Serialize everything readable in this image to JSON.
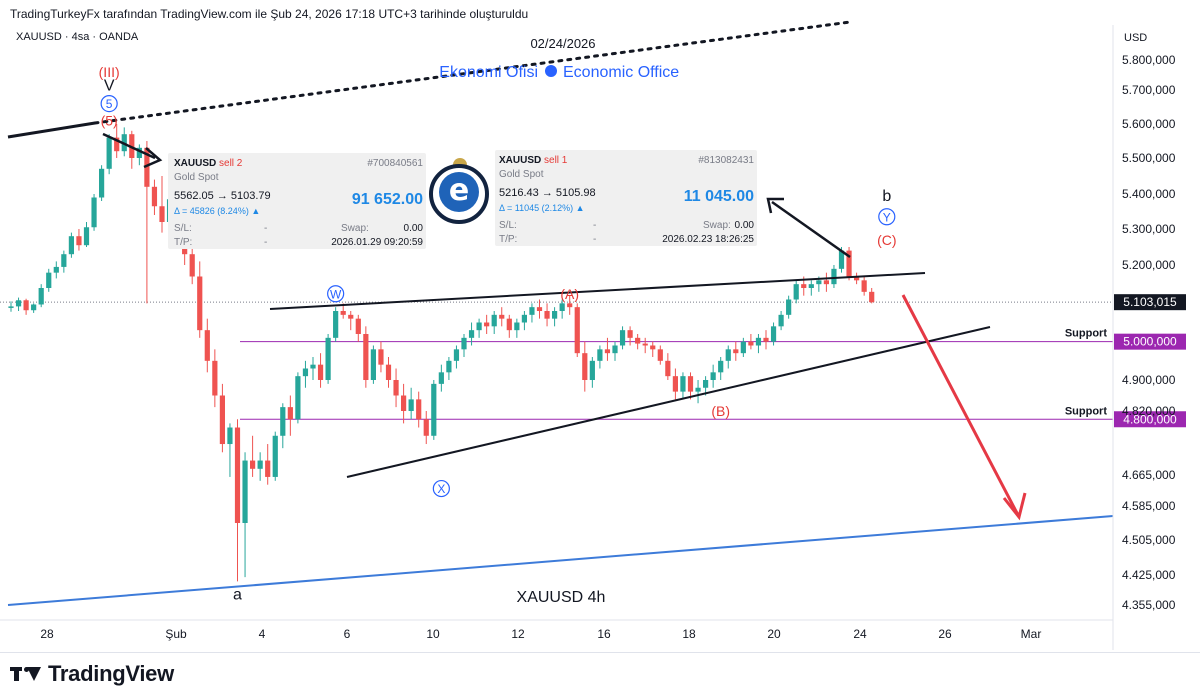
{
  "header": {
    "attribution": "TradingTurkeyFx tarafından TradingView.com ile Şub 24, 2026 17:18 UTC+3 tarihinde oluşturuldu",
    "symbol": "XAUUSD · 4sa · OANDA",
    "currency": "USD",
    "date_label": "02/24/2026",
    "watermark_left": "Ekonomi Ofisi",
    "watermark_right": "Economic Office"
  },
  "footer": {
    "brand": "TradingView"
  },
  "trade_cards": [
    {
      "symbol": "XAUUSD",
      "side": "sell 2",
      "id": "#700840561",
      "instrument": "Gold Spot",
      "prices": "5562.05 → 5103.79",
      "delta": "Δ = 45826 (8.24%) ▲",
      "profit": "91 652.00",
      "sl_label": "S/L:",
      "sl_value": "-",
      "swap_label": "Swap:",
      "swap_value": "0.00",
      "tp_label": "T/P:",
      "tp_value": "-",
      "timestamp": "2026.01.29 09:20:59"
    },
    {
      "symbol": "XAUUSD",
      "side": "sell 1",
      "id": "#813082431",
      "instrument": "Gold Spot",
      "prices": "5216.43 → 5105.98",
      "delta": "Δ = 11045 (2.12%) ▲",
      "profit": "11 045.00",
      "sl_label": "S/L:",
      "sl_value": "-",
      "swap_label": "Swap:",
      "swap_value": "0.00",
      "tp_label": "T/P:",
      "tp_value": "-",
      "timestamp": "2026.02.23 18:26:25"
    }
  ],
  "colors": {
    "up": "#26a69a",
    "down": "#ef5350",
    "wave_label": "#e53935",
    "wave_circle": "#2962ff",
    "support": "#9c27b0",
    "trend_blue": "#3d7bd9",
    "projection": "#e53945"
  },
  "chart_data": {
    "type": "candlestick",
    "title": "XAUUSD   4h",
    "y_axis": {
      "ticks": [
        "5.800,000",
        "5.700,000",
        "5.600,000",
        "5.500,000",
        "5.400,000",
        "5.300,000",
        "5.200,000",
        "4.900,000",
        "4.820,000",
        "4.665,000",
        "4.585,000",
        "4.505,000",
        "4.425,000",
        "4.355,000"
      ],
      "tick_values": [
        5800,
        5700,
        5600,
        5500,
        5400,
        5300,
        5200,
        4900,
        4820,
        4665,
        4585,
        4505,
        4425,
        4355
      ]
    },
    "x_axis": {
      "labels": [
        "28",
        "Şub",
        "4",
        "6",
        "10",
        "12",
        "16",
        "18",
        "20",
        "24",
        "26",
        "Mar"
      ]
    },
    "last_price": {
      "label": "5.103,015",
      "value": 5103.015
    },
    "support_levels": [
      {
        "label": "Support",
        "price_label": "5.000,000",
        "value": 5000
      },
      {
        "label": "Support",
        "price_label": "4.800,000",
        "value": 4800
      }
    ],
    "candles": [
      [
        5088,
        5105,
        5078,
        5092
      ],
      [
        5092,
        5115,
        5080,
        5108
      ],
      [
        5108,
        5112,
        5070,
        5082
      ],
      [
        5082,
        5100,
        5075,
        5097
      ],
      [
        5097,
        5150,
        5090,
        5140
      ],
      [
        5140,
        5190,
        5130,
        5180
      ],
      [
        5180,
        5210,
        5165,
        5195
      ],
      [
        5195,
        5240,
        5180,
        5230
      ],
      [
        5230,
        5290,
        5220,
        5280
      ],
      [
        5280,
        5300,
        5240,
        5255
      ],
      [
        5255,
        5320,
        5250,
        5305
      ],
      [
        5305,
        5400,
        5295,
        5390
      ],
      [
        5390,
        5480,
        5380,
        5470
      ],
      [
        5470,
        5570,
        5455,
        5560
      ],
      [
        5560,
        5600,
        5500,
        5520
      ],
      [
        5520,
        5590,
        5505,
        5570
      ],
      [
        5570,
        5580,
        5470,
        5500
      ],
      [
        5500,
        5540,
        5480,
        5530
      ],
      [
        5530,
        5550,
        5100,
        5420
      ],
      [
        5420,
        5440,
        5340,
        5365
      ],
      [
        5365,
        5450,
        5290,
        5320
      ],
      [
        5320,
        5400,
        5300,
        5385
      ],
      [
        5385,
        5400,
        5260,
        5290
      ],
      [
        5290,
        5320,
        5200,
        5230
      ],
      [
        5230,
        5260,
        5150,
        5170
      ],
      [
        5170,
        5210,
        5010,
        5030
      ],
      [
        5030,
        5060,
        4920,
        4950
      ],
      [
        4950,
        4980,
        4830,
        4860
      ],
      [
        4860,
        4890,
        4720,
        4740
      ],
      [
        4740,
        4790,
        4660,
        4780
      ],
      [
        4780,
        4800,
        4410,
        4545
      ],
      [
        4545,
        4720,
        4420,
        4700
      ],
      [
        4700,
        4760,
        4660,
        4680
      ],
      [
        4680,
        4720,
        4650,
        4700
      ],
      [
        4700,
        4740,
        4640,
        4660
      ],
      [
        4660,
        4770,
        4650,
        4760
      ],
      [
        4760,
        4840,
        4730,
        4830
      ],
      [
        4830,
        4860,
        4760,
        4800
      ],
      [
        4800,
        4920,
        4790,
        4910
      ],
      [
        4910,
        4950,
        4880,
        4930
      ],
      [
        4930,
        4960,
        4900,
        4940
      ],
      [
        4940,
        4970,
        4880,
        4900
      ],
      [
        4900,
        5020,
        4890,
        5010
      ],
      [
        5010,
        5090,
        5000,
        5080
      ],
      [
        5080,
        5100,
        5060,
        5070
      ],
      [
        5070,
        5080,
        5030,
        5060
      ],
      [
        5060,
        5070,
        5000,
        5020
      ],
      [
        5020,
        5040,
        4880,
        4900
      ],
      [
        4900,
        4990,
        4890,
        4980
      ],
      [
        4980,
        5000,
        4920,
        4940
      ],
      [
        4940,
        4960,
        4880,
        4900
      ],
      [
        4900,
        4930,
        4830,
        4860
      ],
      [
        4860,
        4890,
        4790,
        4820
      ],
      [
        4820,
        4880,
        4800,
        4850
      ],
      [
        4850,
        4870,
        4780,
        4800
      ],
      [
        4800,
        4820,
        4740,
        4760
      ],
      [
        4760,
        4900,
        4750,
        4890
      ],
      [
        4890,
        4940,
        4870,
        4920
      ],
      [
        4920,
        4960,
        4900,
        4950
      ],
      [
        4950,
        4990,
        4930,
        4980
      ],
      [
        4980,
        5020,
        4960,
        5010
      ],
      [
        5010,
        5050,
        4990,
        5030
      ],
      [
        5030,
        5060,
        5010,
        5050
      ],
      [
        5050,
        5070,
        5020,
        5040
      ],
      [
        5040,
        5080,
        5020,
        5070
      ],
      [
        5070,
        5090,
        5040,
        5060
      ],
      [
        5060,
        5070,
        5010,
        5030
      ],
      [
        5030,
        5060,
        5010,
        5050
      ],
      [
        5050,
        5080,
        5030,
        5070
      ],
      [
        5070,
        5100,
        5050,
        5090
      ],
      [
        5090,
        5110,
        5060,
        5080
      ],
      [
        5080,
        5100,
        5040,
        5060
      ],
      [
        5060,
        5090,
        5040,
        5080
      ],
      [
        5080,
        5110,
        5060,
        5100
      ],
      [
        5100,
        5120,
        5070,
        5090
      ],
      [
        5090,
        5100,
        4960,
        4970
      ],
      [
        4970,
        5000,
        4870,
        4900
      ],
      [
        4900,
        4960,
        4880,
        4950
      ],
      [
        4950,
        4990,
        4930,
        4980
      ],
      [
        4980,
        5010,
        4950,
        4970
      ],
      [
        4970,
        5000,
        4950,
        4990
      ],
      [
        4990,
        5040,
        4980,
        5030
      ],
      [
        5030,
        5040,
        4990,
        5010
      ],
      [
        5010,
        5020,
        4980,
        4995
      ],
      [
        4995,
        5010,
        4970,
        4990
      ],
      [
        4990,
        5000,
        4960,
        4980
      ],
      [
        4980,
        4990,
        4940,
        4950
      ],
      [
        4950,
        4970,
        4900,
        4910
      ],
      [
        4910,
        4930,
        4850,
        4870
      ],
      [
        4870,
        4920,
        4850,
        4910
      ],
      [
        4910,
        4920,
        4850,
        4870
      ],
      [
        4870,
        4900,
        4840,
        4880
      ],
      [
        4880,
        4910,
        4860,
        4900
      ],
      [
        4900,
        4940,
        4880,
        4920
      ],
      [
        4920,
        4960,
        4900,
        4950
      ],
      [
        4950,
        4990,
        4930,
        4980
      ],
      [
        4980,
        5000,
        4950,
        4970
      ],
      [
        4970,
        5010,
        4960,
        5000
      ],
      [
        5000,
        5020,
        4980,
        4990
      ],
      [
        4990,
        5020,
        4970,
        5010
      ],
      [
        5010,
        5030,
        4980,
        5000
      ],
      [
        5000,
        5050,
        4990,
        5040
      ],
      [
        5040,
        5080,
        5030,
        5070
      ],
      [
        5070,
        5120,
        5060,
        5110
      ],
      [
        5110,
        5160,
        5100,
        5150
      ],
      [
        5150,
        5170,
        5120,
        5140
      ],
      [
        5140,
        5160,
        5120,
        5150
      ],
      [
        5150,
        5170,
        5130,
        5160
      ],
      [
        5160,
        5180,
        5130,
        5150
      ],
      [
        5150,
        5200,
        5140,
        5190
      ],
      [
        5190,
        5250,
        5180,
        5240
      ],
      [
        5240,
        5250,
        5160,
        5170
      ],
      [
        5170,
        5180,
        5150,
        5160
      ],
      [
        5160,
        5170,
        5120,
        5130
      ],
      [
        5130,
        5140,
        5100,
        5103
      ]
    ],
    "wave_labels": [
      {
        "text": "(III)",
        "color": "red",
        "price": 5760,
        "bar": 13
      },
      {
        "text": "V",
        "color": "black",
        "price": 5715,
        "bar": 13
      },
      {
        "text": "5",
        "color": "circle",
        "price": 5660,
        "bar": 13
      },
      {
        "text": "(5)",
        "color": "red",
        "price": 5610,
        "bar": 13
      },
      {
        "text": "a",
        "color": "black",
        "price": 4380,
        "bar": 30
      },
      {
        "text": "W",
        "color": "circle",
        "price": 5125,
        "bar": 43
      },
      {
        "text": "X",
        "color": "circle",
        "price": 4630,
        "bar": 57
      },
      {
        "text": "(A)",
        "color": "red",
        "price": 5125,
        "bar": 74
      },
      {
        "text": "(B)",
        "color": "red",
        "price": 4820,
        "bar": 94
      },
      {
        "text": "b",
        "color": "black",
        "price": 5395,
        "bar": 116
      },
      {
        "text": "Y",
        "color": "circle",
        "price": 5335,
        "bar": 116
      },
      {
        "text": "(C)",
        "color": "red",
        "price": 5270,
        "bar": 116
      }
    ]
  }
}
